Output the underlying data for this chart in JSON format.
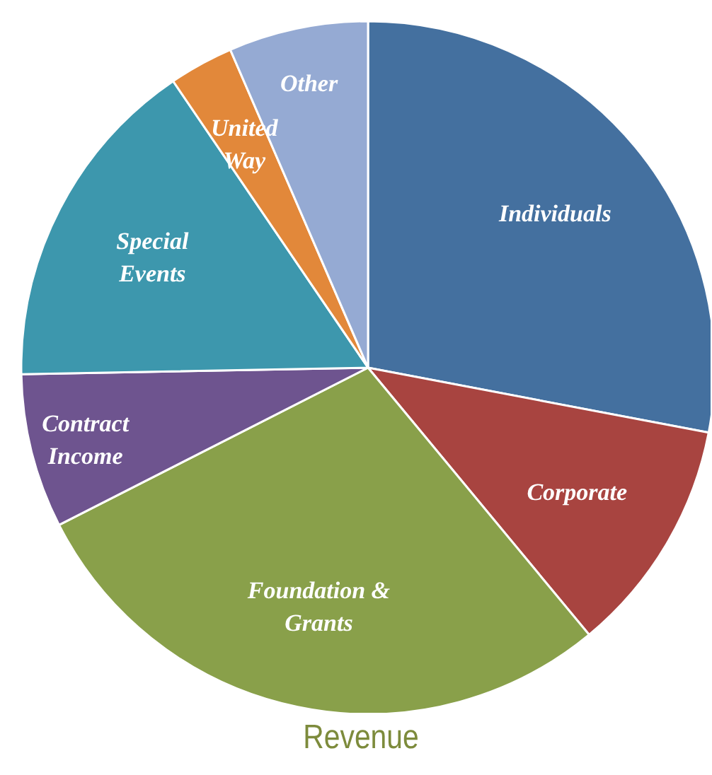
{
  "chart_data": {
    "type": "pie",
    "title": "Revenue",
    "categories": [
      "Individuals",
      "Corporate",
      "Foundation & Grants",
      "Contract Income",
      "Special Events",
      "United Way",
      "Other"
    ],
    "values": [
      28,
      11,
      28.5,
      7.2,
      15.8,
      3,
      6.5
    ],
    "colors": [
      "#44709f",
      "#a84440",
      "#89a04a",
      "#6e548f",
      "#3d97ad",
      "#e2883a",
      "#95aad3"
    ]
  }
}
